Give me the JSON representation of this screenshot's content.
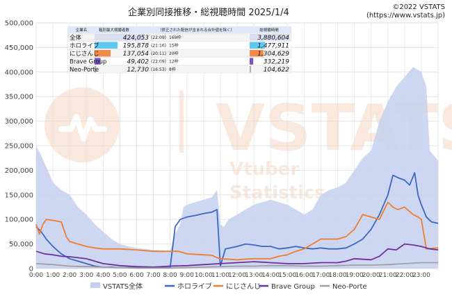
{
  "chart_data": {
    "type": "area",
    "title": "企業別同接推移・総視聴時間 2025/1/4",
    "copyright": [
      "©2022 VSTATS",
      "(https://www.vstats.jp)"
    ],
    "watermark": {
      "main": "VSTATS",
      "sub1": "Vtuber",
      "sub2": "Statistics"
    },
    "ylim": [
      0,
      500000
    ],
    "yticks": [
      "0",
      "50,000",
      "100,000",
      "150,000",
      "200,000",
      "250,000",
      "300,000",
      "350,000",
      "400,000",
      "450,000",
      "500,000"
    ],
    "xticks": [
      "0:00",
      "1:00",
      "2:00",
      "3:00",
      "4:00",
      "5:00",
      "6:00",
      "7:00",
      "8:00",
      "9:00",
      "10:00",
      "11:00",
      "12:00",
      "13:00",
      "14:00",
      "15:00",
      "16:00",
      "17:00",
      "18:00",
      "19:00",
      "20:00",
      "21:00",
      "22:00",
      "23:00"
    ],
    "grid": true,
    "legend_position": "bottom",
    "series": [
      {
        "name": "VSTATS全体",
        "color": "#c5d0ee",
        "points": [
          [
            0,
            250000
          ],
          [
            0.3,
            230000
          ],
          [
            0.5,
            215000
          ],
          [
            1,
            175000
          ],
          [
            1.5,
            160000
          ],
          [
            2,
            150000
          ],
          [
            2.5,
            125000
          ],
          [
            3,
            110000
          ],
          [
            3.5,
            90000
          ],
          [
            4,
            75000
          ],
          [
            4.5,
            60000
          ],
          [
            5,
            50000
          ],
          [
            5.5,
            45000
          ],
          [
            6,
            42000
          ],
          [
            6.5,
            40000
          ],
          [
            7,
            38000
          ],
          [
            7.5,
            37000
          ],
          [
            8,
            36000
          ],
          [
            8.3,
            70000
          ],
          [
            8.6,
            90000
          ],
          [
            8.8,
            125000
          ],
          [
            9,
            130000
          ],
          [
            9.5,
            135000
          ],
          [
            10,
            140000
          ],
          [
            10.5,
            145000
          ],
          [
            10.8,
            160000
          ],
          [
            11,
            90000
          ],
          [
            11.2,
            85000
          ],
          [
            11.5,
            100000
          ],
          [
            12,
            110000
          ],
          [
            12.5,
            120000
          ],
          [
            13,
            130000
          ],
          [
            13.5,
            135000
          ],
          [
            14,
            140000
          ],
          [
            14.5,
            135000
          ],
          [
            15,
            130000
          ],
          [
            15.5,
            120000
          ],
          [
            16,
            110000
          ],
          [
            16.5,
            120000
          ],
          [
            17,
            150000
          ],
          [
            17.5,
            160000
          ],
          [
            18,
            165000
          ],
          [
            18.5,
            175000
          ],
          [
            19,
            200000
          ],
          [
            19.5,
            225000
          ],
          [
            20,
            240000
          ],
          [
            20.5,
            300000
          ],
          [
            21,
            340000
          ],
          [
            21.5,
            370000
          ],
          [
            22,
            390000
          ],
          [
            22.5,
            410000
          ],
          [
            23,
            400000
          ],
          [
            23.3,
            370000
          ],
          [
            23.5,
            240000
          ],
          [
            24,
            220000
          ]
        ]
      },
      {
        "name": "ホロライブ",
        "color": "#3a66c4",
        "points": [
          [
            0,
            85000
          ],
          [
            0.3,
            75000
          ],
          [
            0.6,
            60000
          ],
          [
            1,
            45000
          ],
          [
            1.5,
            30000
          ],
          [
            2,
            20000
          ],
          [
            2.5,
            15000
          ],
          [
            3,
            10000
          ],
          [
            3.5,
            5000
          ],
          [
            4,
            3000
          ],
          [
            4.5,
            3000
          ],
          [
            5,
            2000
          ],
          [
            6,
            2000
          ],
          [
            7,
            2000
          ],
          [
            8,
            2000
          ],
          [
            8.3,
            85000
          ],
          [
            8.6,
            100000
          ],
          [
            9,
            105000
          ],
          [
            9.5,
            108000
          ],
          [
            10,
            112000
          ],
          [
            10.5,
            115000
          ],
          [
            10.8,
            120000
          ],
          [
            11,
            5000
          ],
          [
            11.3,
            40000
          ],
          [
            12,
            45000
          ],
          [
            12.5,
            50000
          ],
          [
            13,
            48000
          ],
          [
            13.5,
            45000
          ],
          [
            14,
            45000
          ],
          [
            14.5,
            40000
          ],
          [
            15,
            42000
          ],
          [
            15.5,
            45000
          ],
          [
            16,
            42000
          ],
          [
            16.5,
            40000
          ],
          [
            17,
            42000
          ],
          [
            17.5,
            40000
          ],
          [
            18,
            40000
          ],
          [
            18.5,
            42000
          ],
          [
            19,
            50000
          ],
          [
            19.5,
            60000
          ],
          [
            20,
            80000
          ],
          [
            20.5,
            110000
          ],
          [
            21,
            150000
          ],
          [
            21.3,
            190000
          ],
          [
            21.6,
            185000
          ],
          [
            22,
            180000
          ],
          [
            22.3,
            170000
          ],
          [
            22.6,
            195000
          ],
          [
            22.8,
            150000
          ],
          [
            23,
            130000
          ],
          [
            23.3,
            105000
          ],
          [
            23.6,
            95000
          ],
          [
            24,
            92000
          ]
        ]
      },
      {
        "name": "にじさんじ",
        "color": "#ee7e2d",
        "points": [
          [
            0,
            90000
          ],
          [
            0.2,
            70000
          ],
          [
            0.4,
            90000
          ],
          [
            0.6,
            100000
          ],
          [
            1,
            98000
          ],
          [
            1.5,
            95000
          ],
          [
            1.8,
            65000
          ],
          [
            2,
            55000
          ],
          [
            2.5,
            50000
          ],
          [
            3,
            45000
          ],
          [
            3.5,
            42000
          ],
          [
            4,
            40000
          ],
          [
            5,
            40000
          ],
          [
            6,
            38000
          ],
          [
            7,
            35000
          ],
          [
            8,
            35000
          ],
          [
            8.5,
            35000
          ],
          [
            9,
            30000
          ],
          [
            10,
            28000
          ],
          [
            10.5,
            27000
          ],
          [
            10.8,
            22000
          ],
          [
            11,
            20000
          ],
          [
            12,
            18000
          ],
          [
            13,
            20000
          ],
          [
            14,
            20000
          ],
          [
            14.5,
            25000
          ],
          [
            15,
            28000
          ],
          [
            15.5,
            35000
          ],
          [
            16,
            40000
          ],
          [
            16.5,
            50000
          ],
          [
            17,
            60000
          ],
          [
            18,
            60000
          ],
          [
            18.5,
            65000
          ],
          [
            19,
            80000
          ],
          [
            19.5,
            110000
          ],
          [
            20,
            105000
          ],
          [
            20.5,
            100000
          ],
          [
            21,
            135000
          ],
          [
            21.3,
            125000
          ],
          [
            21.6,
            120000
          ],
          [
            22,
            125000
          ],
          [
            22.5,
            110000
          ],
          [
            22.8,
            105000
          ],
          [
            23,
            100000
          ],
          [
            23.3,
            40000
          ],
          [
            24,
            42000
          ]
        ]
      },
      {
        "name": "Brave Group",
        "color": "#6f2f9e",
        "points": [
          [
            0,
            35000
          ],
          [
            0.5,
            30000
          ],
          [
            1,
            28000
          ],
          [
            1.5,
            25000
          ],
          [
            2,
            24000
          ],
          [
            2.5,
            22000
          ],
          [
            3,
            20000
          ],
          [
            3.5,
            15000
          ],
          [
            4,
            10000
          ],
          [
            4.5,
            8000
          ],
          [
            5,
            6000
          ],
          [
            6,
            4000
          ],
          [
            7,
            3000
          ],
          [
            8,
            5000
          ],
          [
            9,
            6000
          ],
          [
            10,
            8000
          ],
          [
            11,
            10000
          ],
          [
            12,
            12000
          ],
          [
            13,
            14000
          ],
          [
            14,
            12000
          ],
          [
            15,
            10000
          ],
          [
            16,
            10000
          ],
          [
            17,
            12000
          ],
          [
            18,
            12000
          ],
          [
            18.5,
            15000
          ],
          [
            19,
            20000
          ],
          [
            20,
            18000
          ],
          [
            20.5,
            25000
          ],
          [
            21,
            40000
          ],
          [
            21.5,
            38000
          ],
          [
            22,
            50000
          ],
          [
            22.5,
            48000
          ],
          [
            23,
            45000
          ],
          [
            23.5,
            40000
          ],
          [
            24,
            38000
          ]
        ]
      },
      {
        "name": "Neo-Porte",
        "color": "#a0a0a0",
        "points": [
          [
            0,
            10000
          ],
          [
            1,
            8000
          ],
          [
            2,
            5000
          ],
          [
            3,
            4000
          ],
          [
            4,
            3000
          ],
          [
            5,
            2000
          ],
          [
            6,
            1000
          ],
          [
            7,
            1000
          ],
          [
            8,
            1000
          ],
          [
            9,
            2000
          ],
          [
            10,
            3000
          ],
          [
            11,
            4000
          ],
          [
            12,
            5000
          ],
          [
            13,
            5000
          ],
          [
            14,
            6000
          ],
          [
            15,
            6000
          ],
          [
            16,
            5000
          ],
          [
            17,
            5000
          ],
          [
            18,
            6000
          ],
          [
            19,
            7000
          ],
          [
            20,
            7000
          ],
          [
            21,
            8000
          ],
          [
            22,
            10000
          ],
          [
            23,
            12000
          ],
          [
            24,
            12000
          ]
        ]
      }
    ],
    "summary_table": {
      "headers": [
        "企業名",
        "箱別最大視聴者数",
        "（修正された配信が含まれる合計値を除く）",
        "総視聴時間"
      ],
      "rows": [
        {
          "name": "全体",
          "peak": "424,053",
          "time": "(22:09)",
          "count": "169枠",
          "total": "3,880,604",
          "color": "#d8ddf0",
          "peak_frac": 1.0,
          "total_frac": 1.0
        },
        {
          "name": "ホロライブ",
          "peak": "195,878",
          "time": "(21:16)",
          "count": "15枠",
          "total": "1,477,911",
          "color": "#5ec8ee",
          "peak_frac": 0.46,
          "total_frac": 0.38
        },
        {
          "name": "にじさんじ",
          "peak": "137,054",
          "time": "(20:11)",
          "count": "20枠",
          "total": "1,304,629",
          "color": "#f28a4a",
          "peak_frac": 0.32,
          "total_frac": 0.34
        },
        {
          "name": "Brave Group",
          "peak": "49,402",
          "time": "(22:09)",
          "count": "12枠",
          "total": "332,219",
          "color": "#7a55c4",
          "peak_frac": 0.12,
          "total_frac": 0.09
        },
        {
          "name": "Neo-Porte",
          "peak": "12,730",
          "time": "(16:53)",
          "count": "8枠",
          "total": "104,622",
          "color": "#aaaaaa",
          "peak_frac": 0.03,
          "total_frac": 0.03
        }
      ]
    }
  }
}
